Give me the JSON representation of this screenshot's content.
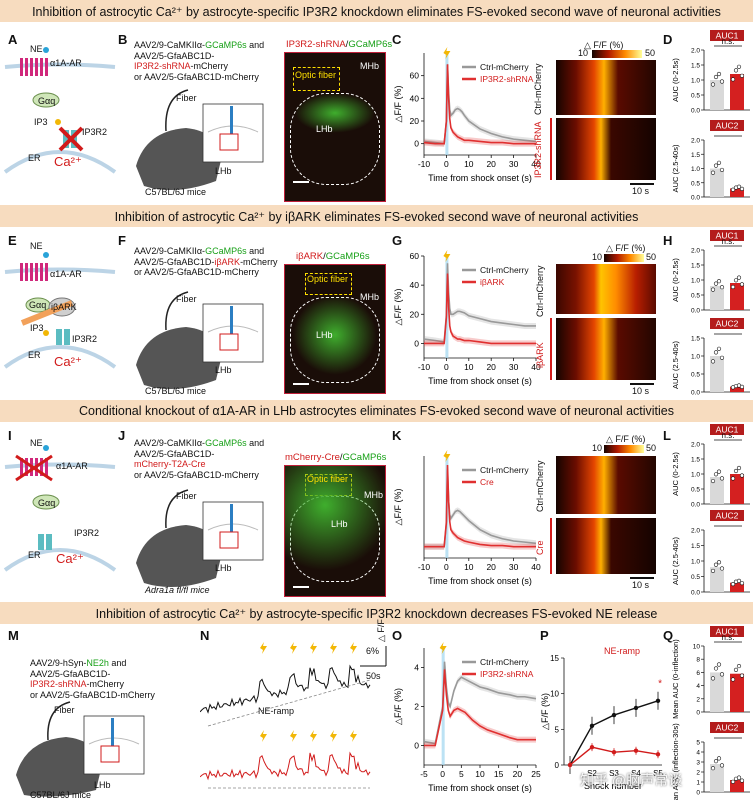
{
  "row_titles": [
    "Inhibition of astrocytic Ca²⁺ by astrocyte-specific IP3R2 knockdown eliminates FS-evoked second wave of neuronal activities",
    "Inhibition of  astrocytic Ca²⁺ by iβARK eliminates FS-evoked second wave of neuronal activities",
    "Conditional knockout of α1A-AR in LHb astrocytes eliminates FS-evoked second wave of neuronal activities",
    "Inhibition of astrocytic Ca²⁺ by astrocyte-specific IP3R2 knockdown decreases FS-evoked NE release"
  ],
  "panel_letters": [
    "A",
    "B",
    "C",
    "D",
    "E",
    "F",
    "G",
    "H",
    "I",
    "J",
    "K",
    "L",
    "M",
    "N",
    "O",
    "P",
    "Q"
  ],
  "schematic": {
    "ne": "NE",
    "a1a_ar": "α1A-AR",
    "gaq": "Gαq",
    "ip3": "IP3",
    "ip3r2": "IP3R2",
    "er": "ER",
    "ca": "Ca²⁺",
    "ibark": "iβARK"
  },
  "surgery": {
    "fiber": "Fiber",
    "lhb": "LHb",
    "mhb": "MHb",
    "optic_fiber": "Optic fiber",
    "mice_c57": "C57BL/6J mice",
    "mice_adra": "Adra1a fl/fl mice"
  },
  "viruses": {
    "B": [
      "AAV2/9-CaMKIIα-",
      "GCaMP6s",
      " and",
      "AAV2/5-GfaABC1D-",
      "IP3R2-shRNA",
      "-mCherry",
      "or AAV2/5-GfaABC1D-mCherry"
    ],
    "F": [
      "AAV2/9-CaMKIIα-",
      "GCaMP6s",
      " and",
      "AAV2/5-GfaABC1D-",
      "iβARK",
      "-mCherry",
      "or AAV2/5-GfaABC1D-mCherry"
    ],
    "J": [
      "AAV2/9-CaMKIIα-",
      "GCaMP6s",
      " and",
      "AAV2/5-GfaABC1D-",
      "mCherry-T2A-Cre",
      "or AAV2/5-GfaABC1D-mCherry"
    ],
    "M": [
      "AAV2/9-hSyn-",
      "NE2h",
      " and",
      "AAV2/5-GfaABC1D-",
      "IP3R2-shRNA",
      "-mCherry",
      "or AAV2/5-GfaABC1D-mCherry"
    ]
  },
  "micrographs": {
    "B": [
      "IP3R2-shRNA",
      "/",
      "GCaMP6s"
    ],
    "F": [
      "iβARK",
      "/",
      "GCaMP6s"
    ],
    "J": [
      "mCherry-Cre",
      "/",
      "GCaMP6s"
    ]
  },
  "legend": {
    "ctrl": "Ctrl-mCherry",
    "ip3r2": "IP3R2-shRNA",
    "ibark": "iβARK",
    "cre": "Cre"
  },
  "axes": {
    "dff": "△F/F (%)",
    "time_shock": "Time from shock onset (s)",
    "colorbar_title": "△ F/F (%)",
    "colorbar_min": "10",
    "colorbar_max": "50",
    "scale_10s": "10 s",
    "scale_50s": "50s",
    "scale_6pct": "6%",
    "scale_6pct_unit": "△ F/F",
    "auc_early": "AUC (0-2.5s)",
    "auc_late": "AUC (2.5-40s)",
    "mean_auc_early": "Mean AUC (0-inflection)",
    "mean_auc_late": "Mean AUC (inflection-30s)",
    "shock_number": "Shock number",
    "ne_ramp": "NE-ramp"
  },
  "stats": {
    "auc1": "AUC1",
    "auc2": "AUC2",
    "ns": "n.s.",
    "two_star": "**",
    "one_star": "*"
  },
  "watermark": "知乎 @脑声常谈",
  "chart_data": [
    {
      "type": "line",
      "panel": "C",
      "xlabel": "Time from shock onset (s)",
      "ylabel": "△F/F (%)",
      "xlim": [
        -10,
        40
      ],
      "ylim": [
        -10,
        80
      ],
      "series": [
        {
          "name": "Ctrl-mCherry",
          "x": [
            -10,
            -5,
            -1,
            0,
            0.5,
            1,
            1.5,
            2,
            3,
            4,
            5,
            6,
            7,
            8,
            10,
            15,
            20,
            25,
            30,
            35,
            40
          ],
          "values": [
            2,
            1,
            0,
            20,
            70,
            45,
            30,
            25,
            27,
            30,
            31,
            30,
            28,
            25,
            20,
            13,
            9,
            6,
            4,
            3,
            2
          ]
        },
        {
          "name": "IP3R2-shRNA",
          "x": [
            -10,
            -5,
            -1,
            0,
            0.5,
            1,
            1.5,
            2,
            3,
            4,
            5,
            6,
            7,
            8,
            10,
            15,
            20,
            25,
            30,
            35,
            40
          ],
          "values": [
            1,
            0,
            0,
            20,
            70,
            40,
            22,
            14,
            10,
            8,
            6,
            5,
            4,
            3,
            3,
            2,
            1,
            1,
            0,
            0,
            0
          ]
        }
      ]
    },
    {
      "type": "line",
      "panel": "G",
      "xlabel": "Time from shock onset (s)",
      "ylabel": "△F/F (%)",
      "xlim": [
        -10,
        40
      ],
      "ylim": [
        -10,
        60
      ],
      "series": [
        {
          "name": "Ctrl-mCherry",
          "x": [
            -10,
            -5,
            -1,
            0,
            0.5,
            1,
            1.5,
            2,
            3,
            4,
            5,
            6,
            8,
            10,
            15,
            20,
            25,
            30,
            35,
            40
          ],
          "values": [
            3,
            2,
            1,
            20,
            55,
            35,
            24,
            20,
            20,
            21,
            22,
            22,
            21,
            19,
            17,
            15,
            14,
            13,
            12,
            12
          ]
        },
        {
          "name": "iβARK",
          "x": [
            -10,
            -5,
            -1,
            0,
            0.5,
            1,
            1.5,
            2,
            3,
            4,
            5,
            6,
            8,
            10,
            15,
            20,
            25,
            30,
            35,
            40
          ],
          "values": [
            0,
            0,
            0,
            18,
            48,
            25,
            12,
            8,
            5,
            4,
            3,
            3,
            2,
            2,
            1,
            0,
            0,
            0,
            0,
            0
          ]
        }
      ]
    },
    {
      "type": "line",
      "panel": "K",
      "xlabel": "Time from shock onset (s)",
      "ylabel": "△F/F (%)",
      "xlim": [
        -10,
        40
      ],
      "ylim": [
        -10,
        80
      ],
      "series": [
        {
          "name": "Ctrl-mCherry",
          "x": [
            -10,
            -5,
            -1,
            0,
            0.5,
            1,
            1.5,
            2,
            3,
            4,
            5,
            6,
            7,
            8,
            10,
            15,
            20,
            25,
            30,
            35,
            40
          ],
          "values": [
            0,
            0,
            0,
            20,
            68,
            40,
            28,
            25,
            28,
            31,
            32,
            31,
            29,
            27,
            23,
            15,
            10,
            7,
            5,
            4,
            3
          ]
        },
        {
          "name": "Cre",
          "x": [
            -10,
            -5,
            -1,
            0,
            0.5,
            1,
            1.5,
            2,
            3,
            4,
            5,
            6,
            7,
            8,
            10,
            15,
            20,
            25,
            30,
            35,
            40
          ],
          "values": [
            0,
            0,
            0,
            22,
            72,
            40,
            22,
            15,
            12,
            10,
            8,
            7,
            6,
            5,
            4,
            2,
            1,
            1,
            0,
            0,
            0
          ]
        }
      ]
    },
    {
      "type": "line",
      "panel": "O",
      "xlabel": "Time from shock onset (s)",
      "ylabel": "△F/F (%)",
      "xlim": [
        -5,
        25
      ],
      "ylim": [
        -1,
        5
      ],
      "series": [
        {
          "name": "Ctrl-mCherry",
          "x": [
            -5,
            -2,
            0,
            0.5,
            1,
            1.5,
            2,
            3,
            4,
            5,
            6,
            8,
            10,
            12,
            15,
            18,
            20,
            22,
            25
          ],
          "values": [
            0.2,
            0.1,
            2,
            4.3,
            3,
            2.2,
            2,
            2.8,
            3.3,
            3.5,
            3.4,
            3.2,
            3,
            2.9,
            2.7,
            2.6,
            2.5,
            2.5,
            2.4
          ]
        },
        {
          "name": "IP3R2-shRNA",
          "x": [
            -5,
            -2,
            0,
            0.5,
            1,
            1.5,
            2,
            3,
            4,
            5,
            6,
            8,
            10,
            12,
            15,
            18,
            20,
            22,
            25
          ],
          "values": [
            0,
            0,
            1.8,
            3.9,
            2.6,
            1.8,
            1.5,
            1.8,
            1.9,
            1.8,
            1.7,
            1.3,
            1.0,
            0.8,
            0.6,
            0.4,
            0.3,
            0.3,
            0.3
          ]
        }
      ]
    },
    {
      "type": "line",
      "panel": "P",
      "title": "NE-ramp",
      "xlabel": "Shock number",
      "ylabel": "△F/F (%)",
      "categories": [
        "",
        "S2",
        "S3",
        "S4",
        "S5"
      ],
      "ylim": [
        0,
        15
      ],
      "series": [
        {
          "name": "Ctrl-mCherry",
          "values": [
            0,
            5.5,
            7,
            8,
            9
          ]
        },
        {
          "name": "IP3R2-shRNA",
          "values": [
            0,
            2.5,
            1.8,
            2,
            1.5
          ]
        }
      ]
    },
    {
      "type": "bar",
      "panel": "D",
      "groups": [
        {
          "name": "AUC1",
          "ylabel": "AUC (0-2.5s)",
          "values": {
            "Ctrl-mCherry": 1.0,
            "IP3R2-shRNA": 1.2
          },
          "ylim": [
            0,
            2
          ]
        },
        {
          "name": "AUC2",
          "ylabel": "AUC (2.5-40s)",
          "values": {
            "Ctrl-mCherry": 1.0,
            "IP3R2-shRNA": 0.3
          },
          "ylim": [
            0,
            2
          ]
        }
      ]
    },
    {
      "type": "bar",
      "panel": "H",
      "groups": [
        {
          "name": "AUC1",
          "ylabel": "AUC (0-2.5s)",
          "values": {
            "Ctrl-mCherry": 0.8,
            "iβARK": 0.9
          },
          "ylim": [
            0,
            2
          ]
        },
        {
          "name": "AUC2",
          "ylabel": "AUC (2.5-40s)",
          "values": {
            "Ctrl-mCherry": 1.0,
            "iβARK": 0.15
          },
          "ylim": [
            0,
            1.5
          ]
        }
      ]
    },
    {
      "type": "bar",
      "panel": "L",
      "groups": [
        {
          "name": "AUC1",
          "ylabel": "AUC (0-2.5s)",
          "values": {
            "Ctrl-mCherry": 0.9,
            "Cre": 1.0
          },
          "ylim": [
            0,
            2
          ]
        },
        {
          "name": "AUC2",
          "ylabel": "AUC (2.5-40s)",
          "values": {
            "Ctrl-mCherry": 0.8,
            "Cre": 0.3
          },
          "ylim": [
            0,
            2
          ]
        }
      ]
    },
    {
      "type": "bar",
      "panel": "Q",
      "groups": [
        {
          "name": "AUC1",
          "ylabel": "Mean AUC (0-inflection)",
          "values": {
            "Ctrl-mCherry": 6,
            "IP3R2-shRNA": 5.8
          },
          "ylim": [
            0,
            10
          ]
        },
        {
          "name": "AUC2",
          "ylabel": "Mean AUC (inflection-30s)",
          "values": {
            "Ctrl-mCherry": 2.8,
            "IP3R2-shRNA": 1.2
          },
          "ylim": [
            0,
            5
          ]
        }
      ]
    }
  ]
}
